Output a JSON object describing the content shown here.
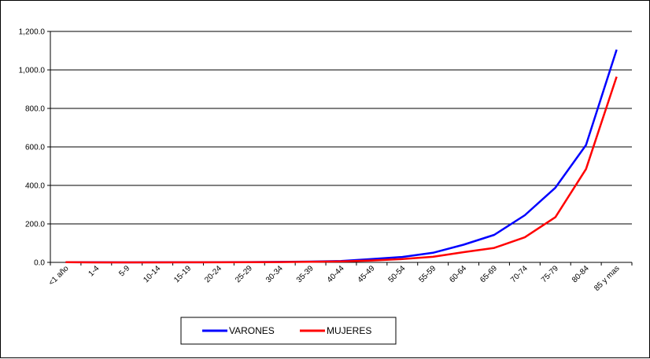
{
  "chart_data": {
    "type": "line",
    "categories": [
      "<1 año",
      "1-4",
      "5-9",
      "10-14",
      "15-19",
      "20-24",
      "25-29",
      "30-34",
      "35-39",
      "40-44",
      "45-49",
      "50-54",
      "55-59",
      "60-64",
      "65-69",
      "70-74",
      "75-79",
      "80-84",
      "85 y mas"
    ],
    "series": [
      {
        "name": "VARONES",
        "color": "#0000ff",
        "values": [
          1,
          0.3,
          0.2,
          0.3,
          0.6,
          1,
          1.5,
          2.5,
          4,
          7,
          17,
          28,
          50,
          92,
          143,
          245,
          388,
          610,
          1105
        ]
      },
      {
        "name": "MUJERES",
        "color": "#ff0000",
        "values": [
          0.8,
          0.2,
          0.1,
          0.2,
          0.4,
          0.6,
          1,
          1.8,
          3,
          5,
          10,
          17,
          29,
          53,
          75,
          130,
          235,
          485,
          965
        ]
      }
    ],
    "yticks": [
      "0.0",
      "200.0",
      "400.0",
      "600.0",
      "800.0",
      "1,000.0",
      "1,200.0"
    ],
    "ylim": [
      0,
      1200
    ],
    "grid": true,
    "legend_position": "bottom"
  }
}
